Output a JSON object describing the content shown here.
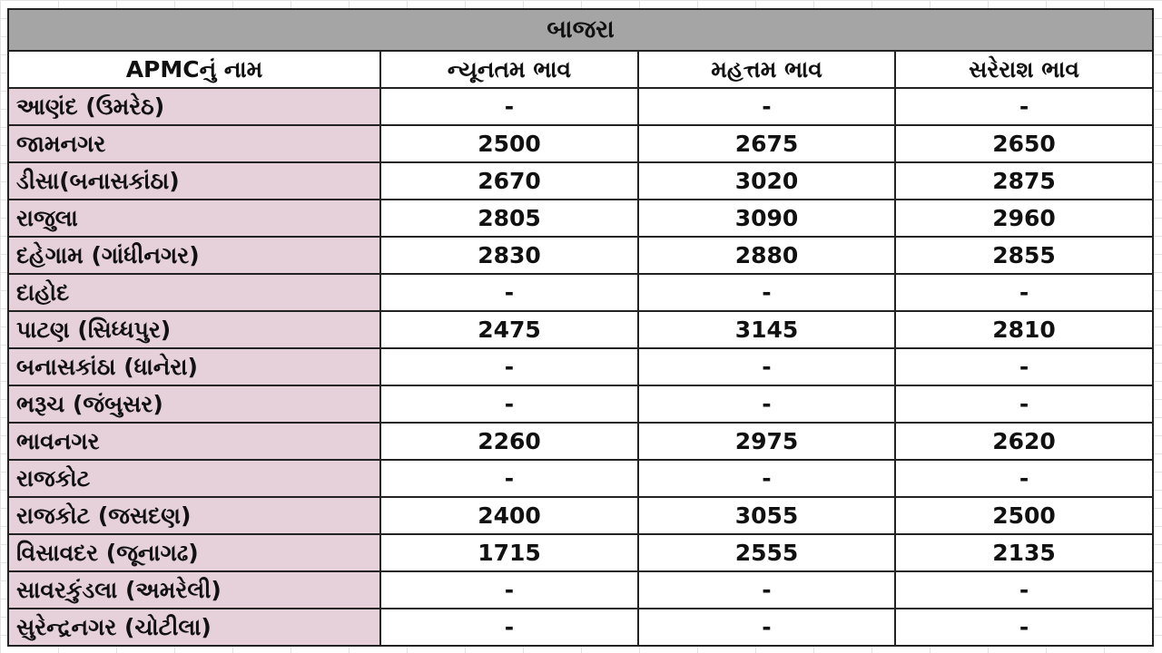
{
  "title": "બાજરા",
  "headers": [
    "APMCનું નામ",
    "ન્યૂનતમ ભાવ",
    "મહત્તમ ભાવ",
    "સરેરાશ ભાવ"
  ],
  "rows": [
    [
      "આણંદ (ઉમરેઠ)",
      "-",
      "-",
      "-"
    ],
    [
      "જામનગર",
      "2500",
      "2675",
      "2650"
    ],
    [
      "ડીસા(બનાસકાંઠા)",
      "2670",
      "3020",
      "2875"
    ],
    [
      "રાજુલા",
      "2805",
      "3090",
      "2960"
    ],
    [
      "દહેગામ (ગાંધીનગર)",
      "2830",
      "2880",
      "2855"
    ],
    [
      "દાહોદ",
      "-",
      "-",
      "-"
    ],
    [
      "પાટણ (સિધ્ધપુર)",
      "2475",
      "3145",
      "2810"
    ],
    [
      "બનાસકાંઠા (ધાનેરા)",
      "-",
      "-",
      "-"
    ],
    [
      "ભરૂચ (જંબુસર)",
      "-",
      "-",
      "-"
    ],
    [
      "ભાવનગર",
      "2260",
      "2975",
      "2620"
    ],
    [
      "રાજકોટ",
      "-",
      "-",
      "-"
    ],
    [
      "રાજકોટ (જસદણ)",
      "2400",
      "3055",
      "2500"
    ],
    [
      "વિસાવદર (જૂનાગઢ)",
      "1715",
      "2555",
      "2135"
    ],
    [
      "સાવરકુંડલા (અમરેલી)",
      "-",
      "-",
      "-"
    ],
    [
      "સુરેન્દ્રનગર (ચોટીલા)",
      "-",
      "-",
      "-"
    ]
  ]
}
